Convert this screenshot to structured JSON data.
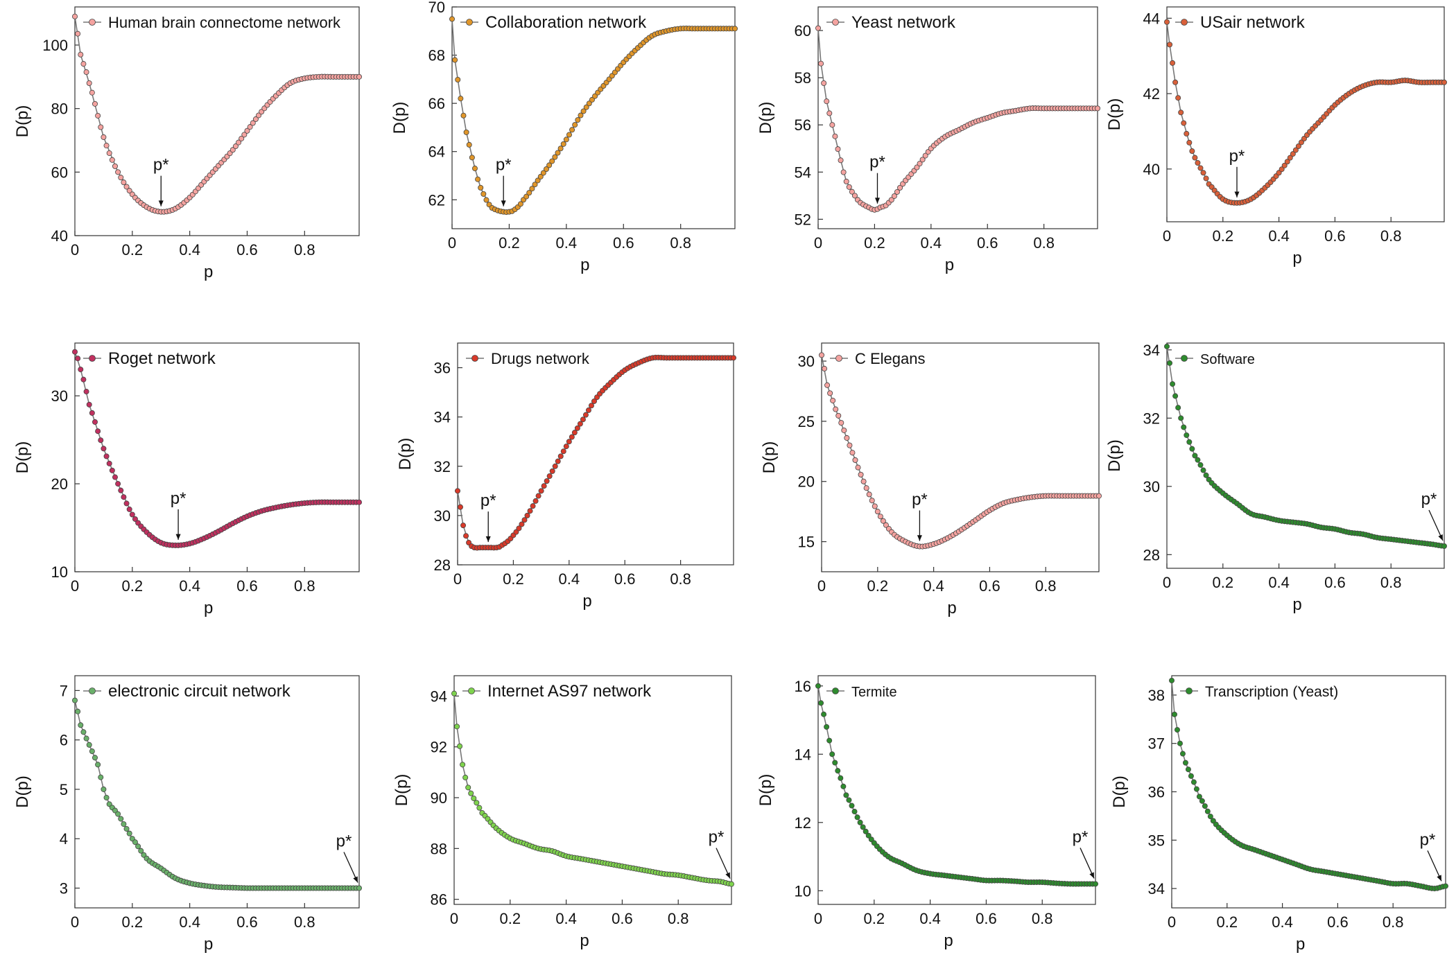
{
  "chart_data": [
    {
      "type": "line",
      "legend": "Human brain connectome network",
      "xlabel": "p",
      "ylabel": "D(p)",
      "annotation": "p*",
      "p_star": 0.3,
      "xlim": [
        0,
        0.99
      ],
      "ylim": [
        40,
        112
      ],
      "xticks": [
        0,
        0.2,
        0.4,
        0.6,
        0.8
      ],
      "yticks": [
        40,
        60,
        80,
        100
      ],
      "marker_color": "#f4a3a0",
      "line_color": "#777777",
      "x": [
        0,
        0.02,
        0.05,
        0.1,
        0.15,
        0.2,
        0.25,
        0.3,
        0.35,
        0.4,
        0.45,
        0.5,
        0.55,
        0.6,
        0.65,
        0.7,
        0.75,
        0.8,
        0.85,
        0.9,
        0.95,
        0.99
      ],
      "y": [
        109,
        97,
        88,
        71,
        60,
        53,
        49,
        47.5,
        48.5,
        52,
        57,
        62,
        67,
        73,
        79,
        84,
        88,
        89.5,
        90,
        90,
        90,
        90
      ]
    },
    {
      "type": "line",
      "legend": "Collaboration network",
      "xlabel": "p",
      "ylabel": "D(p)",
      "annotation": "p*",
      "p_star": 0.18,
      "xlim": [
        0,
        0.99
      ],
      "ylim": [
        60.8,
        70
      ],
      "xticks": [
        0,
        0.2,
        0.4,
        0.6,
        0.8
      ],
      "yticks": [
        62,
        64,
        66,
        68,
        70
      ],
      "marker_color": "#e0962a",
      "line_color": "#777777",
      "x": [
        0,
        0.01,
        0.03,
        0.05,
        0.08,
        0.1,
        0.13,
        0.15,
        0.18,
        0.2,
        0.22,
        0.25,
        0.3,
        0.35,
        0.4,
        0.45,
        0.5,
        0.55,
        0.6,
        0.65,
        0.7,
        0.75,
        0.8,
        0.85,
        0.9,
        0.95,
        0.99
      ],
      "y": [
        69.5,
        67.8,
        66.2,
        64.8,
        63.3,
        62.5,
        61.8,
        61.6,
        61.5,
        61.5,
        61.6,
        62,
        62.8,
        63.6,
        64.5,
        65.5,
        66.3,
        67,
        67.7,
        68.3,
        68.8,
        69,
        69.1,
        69.1,
        69.1,
        69.1,
        69.1
      ]
    },
    {
      "type": "line",
      "legend": "Yeast network",
      "xlabel": "p",
      "ylabel": "D(p)",
      "annotation": "p*",
      "p_star": 0.21,
      "xlim": [
        0,
        0.99
      ],
      "ylim": [
        51.6,
        61
      ],
      "xticks": [
        0,
        0.2,
        0.4,
        0.6,
        0.8
      ],
      "yticks": [
        52,
        54,
        56,
        58,
        60
      ],
      "marker_color": "#f4a3a0",
      "line_color": "#777777",
      "x": [
        0,
        0.01,
        0.03,
        0.05,
        0.08,
        0.1,
        0.13,
        0.15,
        0.18,
        0.2,
        0.22,
        0.25,
        0.3,
        0.35,
        0.4,
        0.45,
        0.5,
        0.55,
        0.6,
        0.65,
        0.7,
        0.75,
        0.8,
        0.85,
        0.9,
        0.95,
        0.99
      ],
      "y": [
        60.1,
        58.6,
        57,
        56,
        54.5,
        53.6,
        53,
        52.7,
        52.5,
        52.4,
        52.5,
        52.7,
        53.5,
        54.2,
        55,
        55.5,
        55.8,
        56.1,
        56.3,
        56.5,
        56.6,
        56.7,
        56.7,
        56.7,
        56.7,
        56.7,
        56.7
      ]
    },
    {
      "type": "line",
      "legend": "USair network",
      "xlabel": "p",
      "ylabel": "D(p)",
      "annotation": "p*",
      "p_star": 0.25,
      "xlim": [
        0,
        0.99
      ],
      "ylim": [
        38.6,
        44.3
      ],
      "xticks": [
        0,
        0.2,
        0.4,
        0.6,
        0.8
      ],
      "yticks": [
        40,
        42,
        44
      ],
      "marker_color": "#d9603a",
      "line_color": "#777777",
      "x": [
        0,
        0.01,
        0.03,
        0.05,
        0.08,
        0.1,
        0.13,
        0.15,
        0.2,
        0.25,
        0.3,
        0.35,
        0.4,
        0.45,
        0.5,
        0.55,
        0.6,
        0.65,
        0.7,
        0.75,
        0.8,
        0.85,
        0.9,
        0.95,
        0.99
      ],
      "y": [
        43.9,
        43.3,
        42.3,
        41.5,
        40.7,
        40.3,
        39.9,
        39.6,
        39.2,
        39.1,
        39.2,
        39.5,
        39.9,
        40.4,
        40.9,
        41.3,
        41.7,
        42,
        42.2,
        42.3,
        42.3,
        42.35,
        42.3,
        42.3,
        42.3
      ]
    },
    {
      "type": "line",
      "legend": "Roget network",
      "xlabel": "p",
      "ylabel": "D(p)",
      "annotation": "p*",
      "p_star": 0.36,
      "xlim": [
        0,
        0.99
      ],
      "ylim": [
        10,
        36
      ],
      "xticks": [
        0,
        0.2,
        0.4,
        0.6,
        0.8
      ],
      "yticks": [
        10,
        20,
        30
      ],
      "marker_color": "#c0305f",
      "line_color": "#777777",
      "x": [
        0,
        0.02,
        0.05,
        0.1,
        0.15,
        0.2,
        0.25,
        0.3,
        0.35,
        0.4,
        0.45,
        0.5,
        0.55,
        0.6,
        0.65,
        0.7,
        0.75,
        0.8,
        0.85,
        0.9,
        0.95,
        0.99
      ],
      "y": [
        35,
        33,
        29,
        24,
        20,
        16.5,
        14.5,
        13.3,
        13,
        13.2,
        13.8,
        14.6,
        15.5,
        16.3,
        16.9,
        17.3,
        17.6,
        17.8,
        17.9,
        17.9,
        17.9,
        17.9
      ]
    },
    {
      "type": "line",
      "legend": "Drugs network",
      "xlabel": "p",
      "ylabel": "D(p)",
      "annotation": "p*",
      "p_star": 0.11,
      "xlim": [
        0,
        0.99
      ],
      "ylim": [
        28,
        37
      ],
      "xticks": [
        0,
        0.2,
        0.4,
        0.6,
        0.8
      ],
      "yticks": [
        28,
        30,
        32,
        34,
        36
      ],
      "marker_color": "#d83a2a",
      "line_color": "#777777",
      "x": [
        0,
        0.02,
        0.04,
        0.06,
        0.08,
        0.1,
        0.12,
        0.14,
        0.16,
        0.2,
        0.25,
        0.3,
        0.35,
        0.4,
        0.45,
        0.5,
        0.55,
        0.6,
        0.65,
        0.7,
        0.75,
        0.8,
        0.85,
        0.9,
        0.95,
        0.99
      ],
      "y": [
        31,
        29.6,
        28.9,
        28.7,
        28.7,
        28.7,
        28.7,
        28.7,
        28.8,
        29.2,
        30,
        31,
        32,
        33,
        33.9,
        34.8,
        35.4,
        35.9,
        36.2,
        36.4,
        36.4,
        36.4,
        36.4,
        36.4,
        36.4,
        36.4
      ]
    },
    {
      "type": "line",
      "legend": "C Elegans",
      "xlabel": "p",
      "ylabel": "D(p)",
      "annotation": "p*",
      "p_star": 0.35,
      "xlim": [
        0,
        0.99
      ],
      "ylim": [
        12.5,
        31.5
      ],
      "xticks": [
        0,
        0.2,
        0.4,
        0.6,
        0.8
      ],
      "yticks": [
        15,
        20,
        25,
        30
      ],
      "marker_color": "#f4a3a0",
      "line_color": "#777777",
      "x": [
        0,
        0.02,
        0.05,
        0.1,
        0.15,
        0.2,
        0.25,
        0.3,
        0.35,
        0.4,
        0.45,
        0.5,
        0.55,
        0.6,
        0.65,
        0.7,
        0.75,
        0.8,
        0.85,
        0.9,
        0.95,
        0.99
      ],
      "y": [
        30.5,
        28,
        26,
        23,
        20,
        17.5,
        15.8,
        15,
        14.6,
        14.8,
        15.3,
        16,
        16.8,
        17.6,
        18.2,
        18.5,
        18.7,
        18.8,
        18.8,
        18.8,
        18.8,
        18.8
      ]
    },
    {
      "type": "line",
      "legend": "Software",
      "xlabel": "p",
      "ylabel": "D(p)",
      "annotation": "p*",
      "p_star": 0.99,
      "xlim": [
        0,
        0.99
      ],
      "ylim": [
        27.6,
        34.2
      ],
      "xticks": [
        0,
        0.2,
        0.4,
        0.6,
        0.8
      ],
      "yticks": [
        28,
        30,
        32,
        34
      ],
      "marker_color": "#2e8b2e",
      "line_color": "#777777",
      "x": [
        0,
        0.02,
        0.05,
        0.08,
        0.1,
        0.15,
        0.2,
        0.25,
        0.3,
        0.35,
        0.4,
        0.45,
        0.5,
        0.55,
        0.6,
        0.65,
        0.7,
        0.75,
        0.8,
        0.85,
        0.9,
        0.95,
        0.99
      ],
      "y": [
        34.1,
        33,
        32,
        31.3,
        30.9,
        30.2,
        29.8,
        29.5,
        29.2,
        29.1,
        29,
        28.95,
        28.9,
        28.8,
        28.75,
        28.65,
        28.6,
        28.5,
        28.45,
        28.4,
        28.35,
        28.3,
        28.25
      ]
    },
    {
      "type": "line",
      "legend": "electronic circuit network",
      "xlabel": "p",
      "ylabel": "D(p)",
      "annotation": "p*",
      "p_star": 0.99,
      "xlim": [
        0,
        0.99
      ],
      "ylim": [
        2.6,
        7.3
      ],
      "xticks": [
        0,
        0.2,
        0.4,
        0.6,
        0.8
      ],
      "yticks": [
        3,
        4,
        5,
        6,
        7
      ],
      "marker_color": "#6ab06a",
      "line_color": "#777777",
      "x": [
        0,
        0.02,
        0.05,
        0.08,
        0.1,
        0.12,
        0.15,
        0.18,
        0.2,
        0.25,
        0.3,
        0.35,
        0.4,
        0.45,
        0.5,
        0.55,
        0.6,
        0.65,
        0.7,
        0.75,
        0.8,
        0.85,
        0.9,
        0.95,
        0.99
      ],
      "y": [
        6.8,
        6.3,
        5.9,
        5.5,
        5,
        4.7,
        4.5,
        4.2,
        4,
        3.6,
        3.4,
        3.2,
        3.1,
        3.05,
        3.02,
        3.01,
        3,
        3,
        3,
        3,
        3,
        3,
        3,
        3,
        3
      ]
    },
    {
      "type": "line",
      "legend": "Internet AS97 network",
      "xlabel": "p",
      "ylabel": "D(p)",
      "annotation": "p*",
      "p_star": 0.99,
      "xlim": [
        0,
        0.99
      ],
      "ylim": [
        85.8,
        94.8
      ],
      "xticks": [
        0,
        0.2,
        0.4,
        0.6,
        0.8
      ],
      "yticks": [
        86,
        88,
        90,
        92,
        94
      ],
      "marker_color": "#7fd34e",
      "line_color": "#777777",
      "x": [
        0,
        0.01,
        0.03,
        0.05,
        0.08,
        0.1,
        0.15,
        0.2,
        0.25,
        0.3,
        0.35,
        0.4,
        0.45,
        0.5,
        0.55,
        0.6,
        0.65,
        0.7,
        0.75,
        0.8,
        0.85,
        0.9,
        0.95,
        0.99
      ],
      "y": [
        94.1,
        92.8,
        91.3,
        90.4,
        89.8,
        89.4,
        88.8,
        88.4,
        88.2,
        88,
        87.9,
        87.7,
        87.6,
        87.5,
        87.4,
        87.3,
        87.2,
        87.1,
        87,
        86.95,
        86.85,
        86.75,
        86.7,
        86.6
      ]
    },
    {
      "type": "line",
      "legend": "Termite",
      "xlabel": "p",
      "ylabel": "D(p)",
      "annotation": "p*",
      "p_star": 0.99,
      "xlim": [
        0,
        0.99
      ],
      "ylim": [
        9.6,
        16.3
      ],
      "xticks": [
        0,
        0.2,
        0.4,
        0.6,
        0.8
      ],
      "yticks": [
        10,
        12,
        14,
        16
      ],
      "marker_color": "#2e8b2e",
      "line_color": "#777777",
      "x": [
        0,
        0.01,
        0.03,
        0.05,
        0.08,
        0.1,
        0.15,
        0.2,
        0.25,
        0.3,
        0.35,
        0.4,
        0.45,
        0.5,
        0.55,
        0.6,
        0.65,
        0.7,
        0.75,
        0.8,
        0.85,
        0.9,
        0.95,
        0.99
      ],
      "y": [
        16,
        15.5,
        14.8,
        14,
        13.3,
        12.8,
        12,
        11.4,
        11,
        10.8,
        10.6,
        10.5,
        10.45,
        10.4,
        10.35,
        10.3,
        10.3,
        10.28,
        10.25,
        10.25,
        10.22,
        10.2,
        10.2,
        10.2
      ]
    },
    {
      "type": "line",
      "legend": "Transcription (Yeast)",
      "xlabel": "p",
      "ylabel": "D(p)",
      "annotation": "p*",
      "p_star": 0.98,
      "xlim": [
        0,
        0.99
      ],
      "ylim": [
        33.6,
        38.4
      ],
      "xticks": [
        0,
        0.2,
        0.4,
        0.6,
        0.8
      ],
      "yticks": [
        34,
        35,
        36,
        37,
        38
      ],
      "marker_color": "#2e8b2e",
      "line_color": "#777777",
      "x": [
        0,
        0.01,
        0.03,
        0.05,
        0.08,
        0.1,
        0.15,
        0.2,
        0.25,
        0.3,
        0.35,
        0.4,
        0.45,
        0.5,
        0.55,
        0.6,
        0.65,
        0.7,
        0.75,
        0.8,
        0.85,
        0.9,
        0.95,
        0.99
      ],
      "y": [
        38.3,
        37.6,
        37,
        36.6,
        36.2,
        35.9,
        35.4,
        35.1,
        34.9,
        34.8,
        34.7,
        34.6,
        34.5,
        34.4,
        34.35,
        34.3,
        34.25,
        34.2,
        34.15,
        34.1,
        34.1,
        34.05,
        34,
        34.05
      ]
    }
  ]
}
